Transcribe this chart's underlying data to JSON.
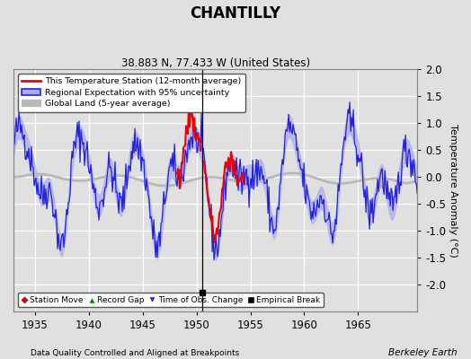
{
  "title": "CHANTILLY",
  "subtitle": "38.883 N, 77.433 W (United States)",
  "xlabel_bottom": "Data Quality Controlled and Aligned at Breakpoints",
  "xlabel_right": "Berkeley Earth",
  "ylabel_right": "Temperature Anomaly (°C)",
  "xmin": 1933.0,
  "xmax": 1970.5,
  "ymin": -2.5,
  "ymax": 2.0,
  "yticks": [
    -2.0,
    -1.5,
    -1.0,
    -0.5,
    0.0,
    0.5,
    1.0,
    1.5,
    2.0
  ],
  "xticks": [
    1935,
    1940,
    1945,
    1950,
    1955,
    1960,
    1965
  ],
  "bg_color": "#e0e0e0",
  "plot_bg_color": "#e0e0e0",
  "grid_color": "#ffffff",
  "regional_color": "#2222dd",
  "regional_fill_color": "#aaaaee",
  "station_color": "#ee0000",
  "global_color": "#b8b8b8",
  "empirical_break_x": 1950.5,
  "empirical_break_y": -2.15,
  "vline_x": 1950.5,
  "station_start": 1948.2,
  "station_gap_end": 1950.45,
  "station_end": 1954.5
}
